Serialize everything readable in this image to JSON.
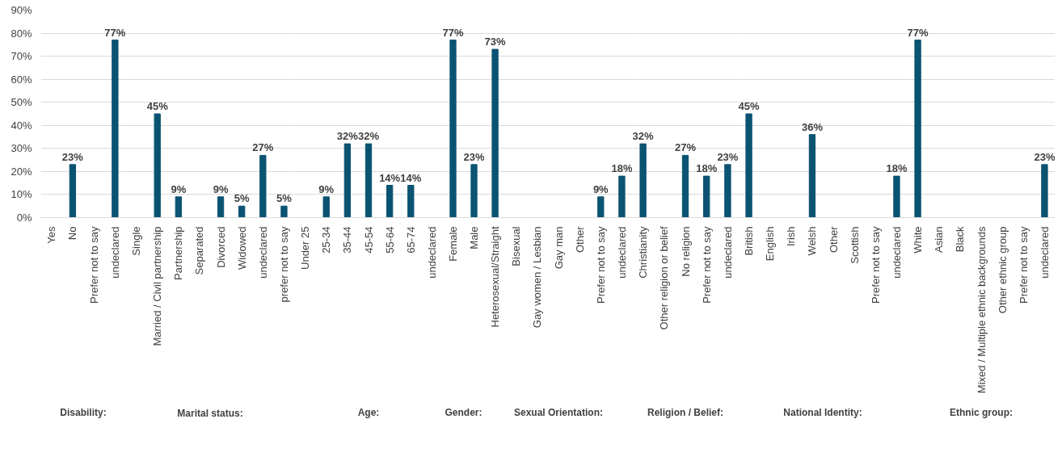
{
  "chart_data": [
    {
      "type": "bar",
      "xlabel": "Disability:",
      "categories": [
        "Yes",
        "No",
        "Prefer not to say",
        "undeclared"
      ],
      "values": [
        0,
        23,
        0,
        77
      ],
      "value_labels": [
        null,
        "23%",
        null,
        "77%"
      ],
      "color": "#0b5372",
      "ylim": [
        0,
        90
      ],
      "yticks": [
        {
          "value": 0,
          "label": "0%"
        },
        {
          "value": 10,
          "label": "10%"
        },
        {
          "value": 20,
          "label": "20%"
        },
        {
          "value": 30,
          "label": "30%"
        },
        {
          "value": 40,
          "label": "40%"
        },
        {
          "value": 50,
          "label": "50%"
        },
        {
          "value": 60,
          "label": "60%"
        },
        {
          "value": 70,
          "label": "70%"
        },
        {
          "value": 80,
          "label": "80%"
        },
        {
          "value": 90,
          "label": "90%"
        }
      ],
      "grid": "y"
    },
    {
      "type": "bar",
      "xlabel": "Marital status:",
      "categories": [
        "Single",
        "Married / Civil partnership",
        "Partnership",
        "Separated",
        "Divorced",
        "Widowed",
        "undeclared",
        "prefer not to say"
      ],
      "values": [
        0,
        45,
        9,
        0,
        9,
        5,
        27,
        5
      ],
      "value_labels": [
        null,
        "45%",
        "9%",
        null,
        "9%",
        "5%",
        "27%",
        "5%"
      ],
      "color": "#0b5372",
      "ylim": [
        0,
        90
      ],
      "yticks": [
        0,
        10,
        20,
        30,
        40,
        50,
        60,
        70,
        80,
        90
      ],
      "grid": "y",
      "tick_labels": "x"
    },
    {
      "type": "bar",
      "xlabel": "Age:",
      "categories": [
        "Under 25",
        "25-34",
        "35-44",
        "45-54",
        "55-64",
        "65-74",
        "undeclared"
      ],
      "values": [
        0,
        9,
        32,
        32,
        14,
        14,
        0
      ],
      "value_labels": [
        null,
        "9%",
        "32%",
        "32%",
        "14%",
        "14%",
        null
      ],
      "color": "#0b5372",
      "ylim": [
        0,
        90
      ],
      "yticks": [
        0,
        10,
        20,
        30,
        40,
        50,
        60,
        70,
        80,
        90
      ],
      "grid": "y",
      "tick_labels": "x"
    },
    {
      "type": "bar",
      "xlabel": "Gender:",
      "categories": [
        "Female",
        "Male"
      ],
      "values": [
        77,
        23
      ],
      "value_labels": [
        "77%",
        "23%"
      ],
      "color": "#0b5372",
      "ylim": [
        0,
        90
      ],
      "yticks": [
        0,
        10,
        20,
        30,
        40,
        50,
        60,
        70,
        80,
        90
      ],
      "grid": "y",
      "tick_labels": "x"
    },
    {
      "type": "bar",
      "xlabel": "Sexual Orientation:",
      "categories": [
        "Heterosexual/Straight",
        "Bisexual",
        "Gay women / Lesbian",
        "Gay man",
        "Other",
        "Prefer not to say",
        "undeclared"
      ],
      "values": [
        73,
        0,
        0,
        0,
        0,
        9,
        18
      ],
      "value_labels": [
        "73%",
        null,
        null,
        null,
        null,
        "9%",
        "18%"
      ],
      "color": "#0b5372",
      "ylim": [
        0,
        90
      ],
      "yticks": [
        0,
        10,
        20,
        30,
        40,
        50,
        60,
        70,
        80,
        90
      ],
      "grid": "y",
      "tick_labels": "x"
    },
    {
      "type": "bar",
      "xlabel": "Religion / Belief:",
      "categories": [
        "Christianity",
        "Other religion or belief",
        "No religion",
        "Prefer not to say",
        "undeclared"
      ],
      "values": [
        32,
        0,
        27,
        18,
        23
      ],
      "value_labels": [
        "32%",
        null,
        "27%",
        "18%",
        "23%"
      ],
      "color": "#0b5372",
      "ylim": [
        0,
        90
      ],
      "yticks": [
        0,
        10,
        20,
        30,
        40,
        50,
        60,
        70,
        80,
        90
      ],
      "grid": "y",
      "tick_labels": "x"
    },
    {
      "type": "bar",
      "xlabel": "National Identity:",
      "categories": [
        "British",
        "English",
        "Irish",
        "Welsh",
        "Other",
        "Scottish",
        "Prefer not to say",
        "undeclared"
      ],
      "values": [
        45,
        0,
        0,
        36,
        0,
        0,
        0,
        18
      ],
      "value_labels": [
        "45%",
        null,
        null,
        "36%",
        null,
        null,
        null,
        "18%"
      ],
      "color": "#0b5372",
      "ylim": [
        0,
        90
      ],
      "yticks": [
        0,
        10,
        20,
        30,
        40,
        50,
        60,
        70,
        80,
        90
      ],
      "grid": "y",
      "tick_labels": "x"
    },
    {
      "type": "bar",
      "xlabel": "Ethnic group:",
      "categories": [
        "White",
        "Asian",
        "Black",
        "Mixed / Multiple ethnic backgrounds",
        "Other ethnic group",
        "Prefer not to say",
        "undeclared"
      ],
      "values": [
        77,
        0,
        0,
        0,
        0,
        0,
        23
      ],
      "value_labels": [
        "77%",
        null,
        null,
        null,
        null,
        null,
        "23%"
      ],
      "color": "#0b5372",
      "ylim": [
        0,
        90
      ],
      "yticks": [
        0,
        10,
        20,
        30,
        40,
        50,
        60,
        70,
        80,
        90
      ],
      "grid": "y",
      "tick_labels": "x"
    }
  ]
}
